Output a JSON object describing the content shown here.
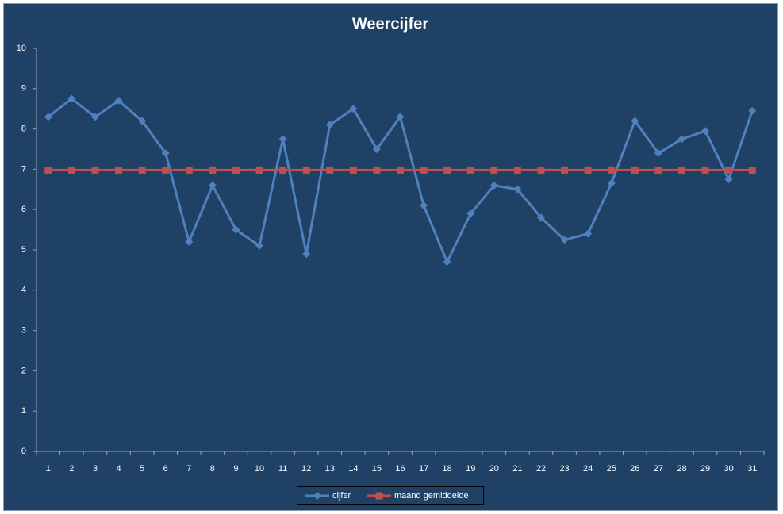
{
  "chart_data": {
    "type": "line",
    "title": "Weercijfer",
    "categories": [
      "1",
      "2",
      "3",
      "4",
      "5",
      "6",
      "7",
      "8",
      "9",
      "10",
      "11",
      "12",
      "13",
      "14",
      "15",
      "16",
      "17",
      "18",
      "19",
      "20",
      "21",
      "22",
      "23",
      "24",
      "25",
      "26",
      "27",
      "28",
      "29",
      "30",
      "31"
    ],
    "series": [
      {
        "name": "cijfer",
        "color": "#4f81bd",
        "marker": "diamond",
        "values": [
          8.3,
          8.75,
          8.3,
          8.7,
          8.2,
          7.4,
          5.2,
          6.6,
          5.5,
          5.1,
          7.75,
          4.9,
          8.1,
          8.5,
          7.5,
          8.3,
          6.1,
          4.7,
          5.9,
          6.6,
          6.5,
          5.8,
          5.25,
          5.4,
          6.65,
          8.2,
          7.4,
          7.75,
          7.95,
          6.75,
          8.45
        ]
      },
      {
        "name": "maand gemiddelde",
        "color": "#c0504d",
        "marker": "square",
        "values": [
          6.98,
          6.98,
          6.98,
          6.98,
          6.98,
          6.98,
          6.98,
          6.98,
          6.98,
          6.98,
          6.98,
          6.98,
          6.98,
          6.98,
          6.98,
          6.98,
          6.98,
          6.98,
          6.98,
          6.98,
          6.98,
          6.98,
          6.98,
          6.98,
          6.98,
          6.98,
          6.98,
          6.98,
          6.98,
          6.98,
          6.98
        ]
      }
    ],
    "ylim": [
      0,
      10
    ],
    "yticks": [
      0,
      1,
      2,
      3,
      4,
      5,
      6,
      7,
      8,
      9,
      10
    ],
    "grid": false,
    "legend": "bottom"
  }
}
